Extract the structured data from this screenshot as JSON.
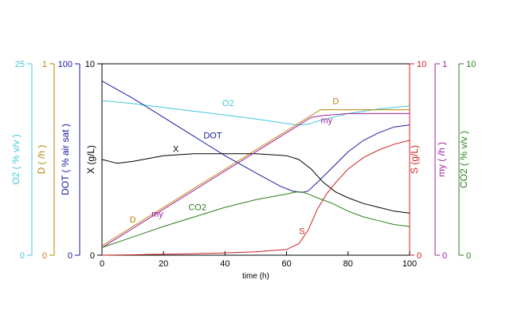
{
  "chart_data": {
    "type": "line",
    "xlabel": "time (h)",
    "xlim": [
      0,
      100
    ],
    "x_ticks": [
      "0",
      "20",
      "40",
      "60",
      "80",
      "100"
    ],
    "axes": [
      {
        "id": "o2",
        "title": "O2 ( % v/v )",
        "color": "#40C8D8",
        "range": [
          0,
          25
        ],
        "tick_labels": [
          "0",
          "25"
        ]
      },
      {
        "id": "d",
        "title": "D ( /h )",
        "color": "#B8860B",
        "range": [
          0,
          1
        ],
        "tick_labels": [
          "0",
          "1"
        ]
      },
      {
        "id": "dot",
        "title": "DOT ( % air sat )",
        "color": "#1A1A9E",
        "range": [
          0,
          100
        ],
        "tick_labels": [
          "0",
          "100"
        ]
      },
      {
        "id": "x",
        "title": "X (g/L)",
        "color": "#000000",
        "range": [
          0,
          10
        ],
        "tick_labels": [
          "0",
          "10"
        ]
      },
      {
        "id": "s",
        "title": "S (g/L)",
        "color": "#CC2222",
        "range": [
          0,
          10
        ],
        "tick_labels": [
          "0",
          "10"
        ]
      },
      {
        "id": "my",
        "title": "my ( /h )",
        "color": "#A020A0",
        "range": [
          0,
          1
        ],
        "tick_labels": [
          "0",
          "1"
        ]
      },
      {
        "id": "co2",
        "title": "CO2 ( % v/v )",
        "color": "#2E7D1E",
        "range": [
          0,
          10
        ],
        "tick_labels": [
          "0",
          "10"
        ]
      }
    ],
    "series": [
      {
        "name": "O2",
        "axis": "o2",
        "color": "#40C8D8",
        "label_at": [
          41,
          19.5
        ],
        "x": [
          0,
          10,
          20,
          30,
          40,
          50,
          60,
          64,
          67,
          70,
          75,
          80,
          85,
          90,
          95,
          100
        ],
        "y": [
          20.2,
          19.8,
          19.3,
          18.8,
          18.3,
          17.8,
          17.2,
          17.0,
          17.1,
          17.5,
          18.0,
          18.5,
          18.8,
          19.1,
          19.3,
          19.5
        ]
      },
      {
        "name": "D",
        "axis": "d",
        "color": "#B8860B",
        "label_at": [
          10,
          0.17
        ],
        "x": [
          0,
          71,
          100
        ],
        "y": [
          0.05,
          0.76,
          0.76
        ]
      },
      {
        "name": "DOT",
        "axis": "dot",
        "color": "#1A1A9E",
        "label_at": [
          36,
          61
        ],
        "x": [
          0,
          10,
          20,
          30,
          40,
          50,
          58,
          62,
          65,
          67,
          70,
          75,
          80,
          85,
          90,
          95,
          100
        ],
        "y": [
          91,
          82,
          72,
          62,
          52,
          43,
          36,
          33.5,
          32.8,
          33.5,
          38,
          46,
          54,
          60,
          64,
          67,
          68
        ]
      },
      {
        "name": "X",
        "axis": "x",
        "color": "#000000",
        "label_at": [
          24,
          5.4
        ],
        "x": [
          0,
          5,
          10,
          20,
          30,
          40,
          50,
          60,
          64,
          68,
          72,
          76,
          80,
          85,
          90,
          95,
          100
        ],
        "y": [
          5.0,
          4.8,
          4.9,
          5.2,
          5.3,
          5.3,
          5.3,
          5.2,
          5.0,
          4.5,
          3.8,
          3.3,
          3.0,
          2.7,
          2.5,
          2.3,
          2.2
        ]
      },
      {
        "name": "S",
        "axis": "s",
        "color": "#CC2222",
        "label_at": [
          65,
          1.1
        ],
        "x": [
          0,
          10,
          20,
          30,
          40,
          50,
          60,
          64,
          67,
          70,
          73,
          76,
          80,
          85,
          90,
          95,
          100
        ],
        "y": [
          0.0,
          0.02,
          0.05,
          0.08,
          0.12,
          0.18,
          0.3,
          0.6,
          1.3,
          2.4,
          3.2,
          3.8,
          4.5,
          5.1,
          5.5,
          5.8,
          6.0
        ]
      },
      {
        "name": "my",
        "axis": "my",
        "color": "#A020A0",
        "label_at": [
          18,
          0.2
        ],
        "x": [
          0,
          10,
          20,
          30,
          40,
          50,
          60,
          65,
          68,
          72,
          76,
          80,
          90,
          100
        ],
        "y": [
          0.04,
          0.14,
          0.24,
          0.34,
          0.44,
          0.54,
          0.64,
          0.69,
          0.72,
          0.73,
          0.735,
          0.74,
          0.74,
          0.74
        ]
      },
      {
        "name": "CO2",
        "axis": "co2",
        "color": "#2E7D1E",
        "label_at": [
          31,
          2.35
        ],
        "x": [
          0,
          10,
          20,
          30,
          40,
          50,
          60,
          63,
          65,
          67,
          70,
          75,
          80,
          85,
          90,
          95,
          100
        ],
        "y": [
          0.4,
          0.95,
          1.5,
          2.0,
          2.5,
          2.9,
          3.2,
          3.3,
          3.3,
          3.2,
          3.0,
          2.7,
          2.3,
          2.0,
          1.8,
          1.6,
          1.5
        ]
      }
    ]
  }
}
